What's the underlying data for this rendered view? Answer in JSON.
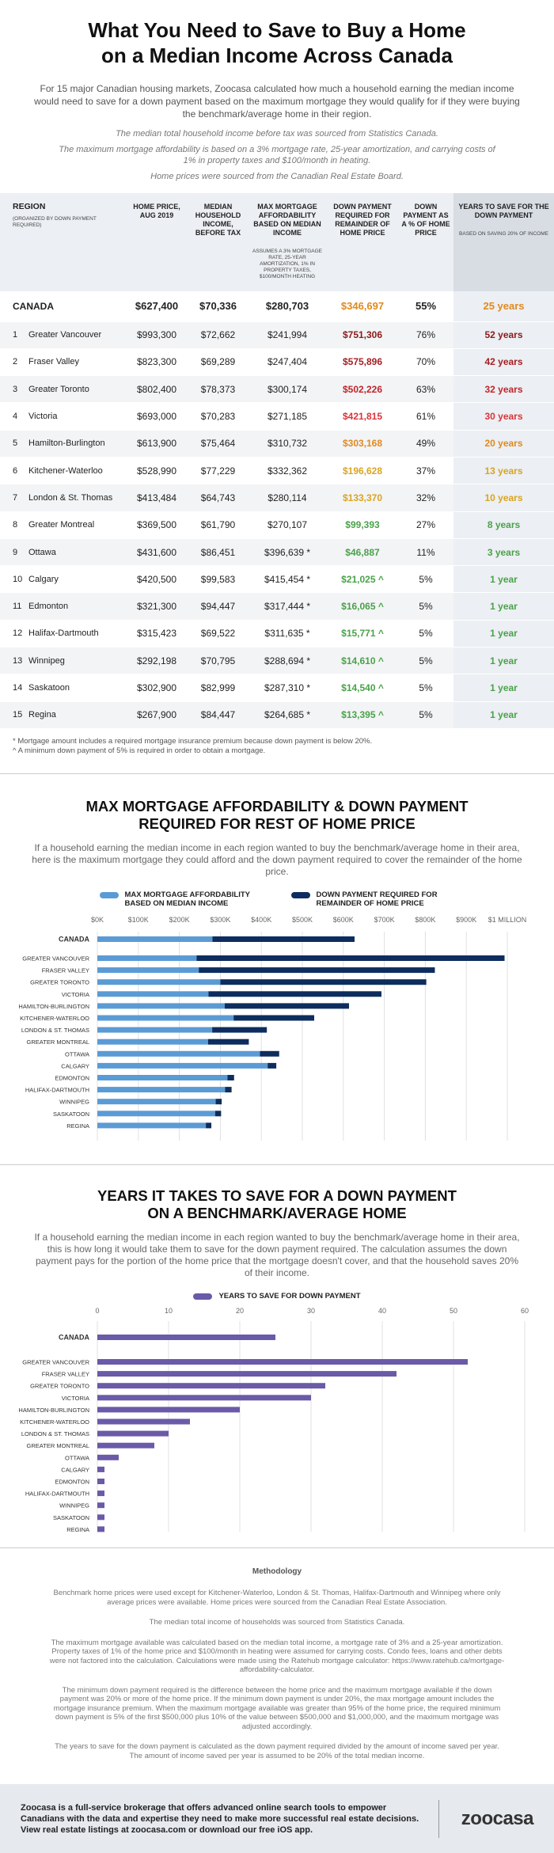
{
  "header": {
    "title_line1": "What You Need to Save to Buy a Home",
    "title_line2": "on a Median Income Across Canada",
    "intro": "For 15 major Canadian housing markets, Zoocasa calculated how much a household earning the median income would need to save for a down payment based on the maximum mortgage they would qualify for if they were buying the benchmark/average home in their region.",
    "note1": "The median total household income before tax was sourced from Statistics Canada.",
    "note2": "The maximum mortgage affordability is based on a 3% mortgage rate, 25-year amortization, and carrying costs of 1% in property taxes and $100/month in heating.",
    "note3": "Home prices were sourced from the Canadian Real Estate Board."
  },
  "table": {
    "headers": {
      "region": "REGION",
      "region_sub": "(ORGANIZED BY DOWN PAYMENT REQUIRED)",
      "price": "HOME PRICE, AUG 2019",
      "income": "MEDIAN HOUSEHOLD INCOME, BEFORE TAX",
      "mortgage": "MAX MORTGAGE AFFORDABILITY BASED ON MEDIAN INCOME",
      "mortgage_sub": "ASSUMES A 3% MORTGAGE RATE, 25-YEAR AMORTIZATION, 1% IN PROPERTY TAXES, $100/MONTH HEATING",
      "downpay": "DOWN PAYMENT REQUIRED FOR REMAINDER OF HOME PRICE",
      "pct": "DOWN PAYMENT AS A % OF HOME PRICE",
      "years": "YEARS TO SAVE FOR THE DOWN PAYMENT",
      "years_sub": "BASED ON SAVING 20% OF INCOME"
    },
    "canada": {
      "region": "CANADA",
      "price": "$627,400",
      "income": "$70,336",
      "mortgage": "$280,703",
      "downpay": "$346,697",
      "pct": "55%",
      "years": "25 years",
      "dp_color": "#e08a1e",
      "yr_color": "#e08a1e"
    },
    "rows": [
      {
        "num": "1",
        "region": "Greater Vancouver",
        "price": "$993,300",
        "income": "$72,662",
        "mortgage": "$241,994",
        "downpay": "$751,306",
        "pct": "76%",
        "years": "52 years",
        "dp_color": "#8b1a1a",
        "yr_color": "#8b1a1a"
      },
      {
        "num": "2",
        "region": "Fraser Valley",
        "price": "$823,300",
        "income": "$69,289",
        "mortgage": "$247,404",
        "downpay": "$575,896",
        "pct": "70%",
        "years": "42 years",
        "dp_color": "#a51e22",
        "yr_color": "#a51e22"
      },
      {
        "num": "3",
        "region": "Greater Toronto",
        "price": "$802,400",
        "income": "$78,373",
        "mortgage": "$300,174",
        "downpay": "$502,226",
        "pct": "63%",
        "years": "32 years",
        "dp_color": "#c0262b",
        "yr_color": "#c0262b"
      },
      {
        "num": "4",
        "region": "Victoria",
        "price": "$693,000",
        "income": "$70,283",
        "mortgage": "$271,185",
        "downpay": "$421,815",
        "pct": "61%",
        "years": "30 years",
        "dp_color": "#d8353a",
        "yr_color": "#d8353a"
      },
      {
        "num": "5",
        "region": "Hamilton-Burlington",
        "price": "$613,900",
        "income": "$75,464",
        "mortgage": "$310,732",
        "downpay": "$303,168",
        "pct": "49%",
        "years": "20 years",
        "dp_color": "#e08a1e",
        "yr_color": "#e08a1e"
      },
      {
        "num": "6",
        "region": "Kitchener-Waterloo",
        "price": "$528,990",
        "income": "$77,229",
        "mortgage": "$332,362",
        "downpay": "$196,628",
        "pct": "37%",
        "years": "13 years",
        "dp_color": "#d9a520",
        "yr_color": "#d9a520"
      },
      {
        "num": "7",
        "region": "London & St. Thomas",
        "price": "$413,484",
        "income": "$64,743",
        "mortgage": "$280,114",
        "downpay": "$133,370",
        "pct": "32%",
        "years": "10 years",
        "dp_color": "#d9a520",
        "yr_color": "#d9a520"
      },
      {
        "num": "8",
        "region": "Greater Montreal",
        "price": "$369,500",
        "income": "$61,790",
        "mortgage": "$270,107",
        "downpay": "$99,393",
        "pct": "27%",
        "years": "8 years",
        "dp_color": "#4aa24a",
        "yr_color": "#4aa24a"
      },
      {
        "num": "9",
        "region": "Ottawa",
        "price": "$431,600",
        "income": "$86,451",
        "mortgage": "$396,639 *",
        "downpay": "$46,887",
        "pct": "11%",
        "years": "3 years",
        "dp_color": "#4aa24a",
        "yr_color": "#4aa24a"
      },
      {
        "num": "10",
        "region": "Calgary",
        "price": "$420,500",
        "income": "$99,583",
        "mortgage": "$415,454 *",
        "downpay": "$21,025 ^",
        "pct": "5%",
        "years": "1 year",
        "dp_color": "#4aa24a",
        "yr_color": "#4aa24a"
      },
      {
        "num": "11",
        "region": "Edmonton",
        "price": "$321,300",
        "income": "$94,447",
        "mortgage": "$317,444 *",
        "downpay": "$16,065 ^",
        "pct": "5%",
        "years": "1 year",
        "dp_color": "#4aa24a",
        "yr_color": "#4aa24a"
      },
      {
        "num": "12",
        "region": "Halifax-Dartmouth",
        "price": "$315,423",
        "income": "$69,522",
        "mortgage": "$311,635 *",
        "downpay": "$15,771 ^",
        "pct": "5%",
        "years": "1 year",
        "dp_color": "#4aa24a",
        "yr_color": "#4aa24a"
      },
      {
        "num": "13",
        "region": "Winnipeg",
        "price": "$292,198",
        "income": "$70,795",
        "mortgage": "$288,694 *",
        "downpay": "$14,610 ^",
        "pct": "5%",
        "years": "1 year",
        "dp_color": "#4aa24a",
        "yr_color": "#4aa24a"
      },
      {
        "num": "14",
        "region": "Saskatoon",
        "price": "$302,900",
        "income": "$82,999",
        "mortgage": "$287,310 *",
        "downpay": "$14,540 ^",
        "pct": "5%",
        "years": "1 year",
        "dp_color": "#4aa24a",
        "yr_color": "#4aa24a"
      },
      {
        "num": "15",
        "region": "Regina",
        "price": "$267,900",
        "income": "$84,447",
        "mortgage": "$264,685 *",
        "downpay": "$13,395 ^",
        "pct": "5%",
        "years": "1 year",
        "dp_color": "#4aa24a",
        "yr_color": "#4aa24a"
      }
    ],
    "footnote1": "* Mortgage amount includes a required mortgage insurance premium because down payment is below 20%.",
    "footnote2": "^ A minimum down payment of 5% is required in order to obtain a mortgage."
  },
  "section2": {
    "title_line1": "MAX MORTGAGE AFFORDABILITY & DOWN PAYMENT",
    "title_line2": "REQUIRED FOR REST OF HOME PRICE",
    "desc": "If a household earning the median income in each region wanted to buy the benchmark/average home in their area, here is the maximum mortgage they could afford and the down payment required to cover the remainder of the home price.",
    "legend1": "MAX MORTGAGE AFFORDABILITY BASED ON MEDIAN INCOME",
    "legend2": "DOWN PAYMENT REQUIRED FOR REMAINDER OF HOME PRICE"
  },
  "section3": {
    "title_line1": "YEARS IT TAKES TO SAVE FOR A DOWN PAYMENT",
    "title_line2": "ON A BENCHMARK/AVERAGE HOME",
    "desc": "If a household earning the median income in each region wanted to buy the benchmark/average home in their area, this is how long it would take them to save for the down payment required. The calculation assumes the down payment pays for the portion of the home price that the mortgage doesn't cover, and that the household saves 20% of their income.",
    "legend": "YEARS TO SAVE FOR DOWN PAYMENT"
  },
  "chart_data": [
    {
      "type": "bar",
      "orientation": "horizontal",
      "stacked": true,
      "categories": [
        "CANADA",
        "GREATER VANCOUVER",
        "FRASER VALLEY",
        "GREATER TORONTO",
        "VICTORIA",
        "HAMILTON-BURLINGTON",
        "KITCHENER-WATERLOO",
        "LONDON & ST. THOMAS",
        "GREATER MONTREAL",
        "OTTAWA",
        "CALGARY",
        "EDMONTON",
        "HALIFAX-DARTMOUTH",
        "WINNIPEG",
        "SASKATOON",
        "REGINA"
      ],
      "series": [
        {
          "name": "MAX MORTGAGE AFFORDABILITY BASED ON MEDIAN INCOME",
          "color": "#5b9bd5",
          "values": [
            280703,
            241994,
            247404,
            300174,
            271185,
            310732,
            332362,
            280114,
            270107,
            396639,
            415454,
            317444,
            311635,
            288694,
            287310,
            264685
          ]
        },
        {
          "name": "DOWN PAYMENT REQUIRED FOR REMAINDER OF HOME PRICE",
          "color": "#0d2d5e",
          "values": [
            346697,
            751306,
            575896,
            502226,
            421815,
            303168,
            196628,
            133370,
            99393,
            46887,
            21025,
            16065,
            15771,
            14610,
            14540,
            13395
          ]
        }
      ],
      "xticks": [
        "$0K",
        "$100K",
        "$200K",
        "$300K",
        "$400K",
        "$500K",
        "$600K",
        "$700K",
        "$800K",
        "$900K",
        "$1 MILLION"
      ],
      "xlim": [
        0,
        1000000
      ]
    },
    {
      "type": "bar",
      "orientation": "horizontal",
      "categories": [
        "CANADA",
        "GREATER VANCOUVER",
        "FRASER VALLEY",
        "GREATER TORONTO",
        "VICTORIA",
        "HAMILTON-BURLINGTON",
        "KITCHENER-WATERLOO",
        "LONDON & ST. THOMAS",
        "GREATER MONTREAL",
        "OTTAWA",
        "CALGARY",
        "EDMONTON",
        "HALIFAX-DARTMOUTH",
        "WINNIPEG",
        "SASKATOON",
        "REGINA"
      ],
      "series": [
        {
          "name": "YEARS TO SAVE FOR DOWN PAYMENT",
          "color": "#6a5aa8",
          "values": [
            25,
            52,
            42,
            32,
            30,
            20,
            13,
            10,
            8,
            3,
            1,
            1,
            1,
            1,
            1,
            1
          ]
        }
      ],
      "xticks": [
        "0",
        "10",
        "20",
        "30",
        "40",
        "50",
        "60"
      ],
      "xlim": [
        0,
        60
      ]
    }
  ],
  "methodology": {
    "title": "Methodology",
    "p1": "Benchmark home prices were used except for Kitchener-Waterloo, London & St. Thomas, Halifax-Dartmouth and Winnipeg where only average prices were available. Home prices were sourced from the Canadian Real Estate Association.",
    "p2": "The median total income of households was sourced from Statistics Canada.",
    "p3": "The maximum mortgage available was calculated based on the median total income, a mortgage rate of 3% and a 25-year amortization. Property taxes of 1% of the home price and $100/month in heating were assumed for carrying costs. Condo fees, loans and other debts were not factored into the calculation. Calculations were made using the Ratehub mortgage calculator: https://www.ratehub.ca/mortgage-affordability-calculator.",
    "p4": "The minimum down payment required is the difference between the home price and the maximum mortgage available if the down payment was 20% or more of the home price. If the minimum down payment is under 20%, the max mortgage amount includes the mortgage insurance premium. When the maximum mortgage available was greater than 95% of the home price, the required minimum down payment is 5% of the first $500,000 plus 10% of the value between $500,000 and $1,000,000, and the maximum mortgage was adjusted accordingly.",
    "p5": "The years to save for the down payment is calculated as the down payment required divided by the amount of income saved per year. The amount of income saved per year is assumed to be 20% of the total median income."
  },
  "footer": {
    "text": "Zoocasa is a full-service brokerage that offers advanced online search tools to empower Canadians with the data and expertise they need to make more successful real estate decisions. View real estate listings at zoocasa.com or download our free iOS app.",
    "logo": "zoocasa"
  }
}
